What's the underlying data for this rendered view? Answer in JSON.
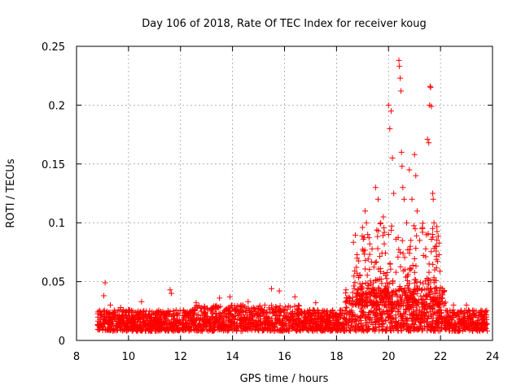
{
  "chart_data": {
    "type": "scatter",
    "title": "Day 106 of 2018, Rate Of TEC Index for receiver koug",
    "xlabel": "GPS time / hours",
    "ylabel": "ROTI / TECUs",
    "xlim": [
      8,
      24
    ],
    "ylim": [
      0,
      0.25
    ],
    "xticks": [
      "8",
      "10",
      "12",
      "14",
      "16",
      "18",
      "20",
      "22",
      "24"
    ],
    "yticks": [
      "0",
      "0.05",
      "0.1",
      "0.15",
      "0.2",
      "0.25"
    ],
    "grid": true,
    "marker": "+",
    "color": "#ff0000",
    "series": [
      {
        "name": "ROTI",
        "points": [
          [
            9.1,
            0.049
          ],
          [
            9.05,
            0.038
          ],
          [
            9.3,
            0.03
          ],
          [
            9.7,
            0.028
          ],
          [
            10.5,
            0.033
          ],
          [
            11.6,
            0.043
          ],
          [
            11.65,
            0.04
          ],
          [
            12.6,
            0.032
          ],
          [
            13.5,
            0.036
          ],
          [
            13.9,
            0.037
          ],
          [
            14.6,
            0.033
          ],
          [
            15.5,
            0.044
          ],
          [
            15.8,
            0.042
          ],
          [
            16.4,
            0.037
          ],
          [
            17.2,
            0.032
          ],
          [
            18.7,
            0.059
          ],
          [
            18.9,
            0.055
          ],
          [
            19.1,
            0.11
          ],
          [
            19.15,
            0.1
          ],
          [
            19.2,
            0.09
          ],
          [
            19.5,
            0.13
          ],
          [
            19.6,
            0.12
          ],
          [
            19.8,
            0.105
          ],
          [
            20.0,
            0.2
          ],
          [
            20.05,
            0.18
          ],
          [
            20.1,
            0.195
          ],
          [
            20.15,
            0.155
          ],
          [
            20.2,
            0.125
          ],
          [
            20.4,
            0.238
          ],
          [
            20.42,
            0.233
          ],
          [
            20.45,
            0.223
          ],
          [
            20.48,
            0.212
          ],
          [
            20.5,
            0.16
          ],
          [
            20.52,
            0.148
          ],
          [
            20.55,
            0.13
          ],
          [
            20.6,
            0.12
          ],
          [
            20.7,
            0.1
          ],
          [
            20.8,
            0.145
          ],
          [
            20.9,
            0.12
          ],
          [
            21.0,
            0.158
          ],
          [
            21.05,
            0.14
          ],
          [
            21.1,
            0.11
          ],
          [
            21.2,
            0.085
          ],
          [
            21.3,
            0.095
          ],
          [
            21.5,
            0.171
          ],
          [
            21.55,
            0.168
          ],
          [
            21.6,
            0.216
          ],
          [
            21.62,
            0.215
          ],
          [
            21.58,
            0.2
          ],
          [
            21.65,
            0.199
          ],
          [
            21.7,
            0.125
          ],
          [
            21.72,
            0.12
          ],
          [
            21.75,
            0.1
          ],
          [
            21.8,
            0.08
          ],
          [
            22.0,
            0.045
          ],
          [
            22.5,
            0.03
          ],
          [
            23.0,
            0.03
          ],
          [
            23.6,
            0.025
          ]
        ],
        "baseline_range": [
          0.008,
          0.026
        ],
        "baseline_x_range": [
          8.8,
          23.8
        ]
      }
    ]
  }
}
